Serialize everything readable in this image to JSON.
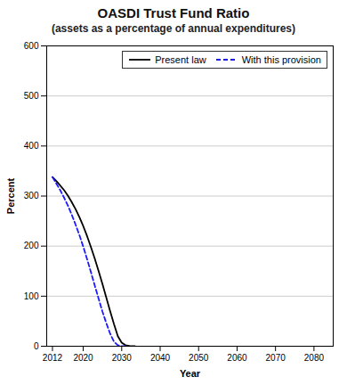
{
  "chart_data": {
    "type": "line",
    "title": "OASDI Trust Fund Ratio",
    "subtitle": "(assets as a percentage of annual expenditures)",
    "xlabel": "Year",
    "ylabel": "Percent",
    "xlim": [
      2010.5,
      2085
    ],
    "ylim": [
      0,
      600
    ],
    "xticks": [
      2012,
      2020,
      2030,
      2040,
      2050,
      2060,
      2070,
      2080
    ],
    "yticks": [
      0,
      100,
      200,
      300,
      400,
      500,
      600
    ],
    "grid": "y",
    "legend": "upper right",
    "series": [
      {
        "name": "Present law",
        "color": "#000000",
        "line_style": "solid",
        "x": [
          2012,
          2013,
          2014,
          2015,
          2016,
          2017,
          2018,
          2019,
          2020,
          2021,
          2022,
          2023,
          2024,
          2025,
          2026,
          2027,
          2028,
          2029,
          2030,
          2031,
          2032,
          2033,
          2033.5
        ],
        "values": [
          338,
          330,
          321,
          312,
          301,
          288,
          274,
          258,
          240,
          220,
          198,
          175,
          150,
          124,
          97,
          70,
          44,
          20,
          7,
          2,
          0.5,
          0,
          0
        ]
      },
      {
        "name": "With this provision",
        "color": "#1a1aff",
        "line_style": "dashed",
        "x": [
          2012,
          2013,
          2014,
          2015,
          2016,
          2017,
          2018,
          2019,
          2020,
          2021,
          2022,
          2023,
          2024,
          2025,
          2026,
          2027,
          2028,
          2029,
          2030,
          2030.5,
          2031
        ],
        "values": [
          338,
          325,
          312,
          297,
          281,
          263,
          243,
          222,
          199,
          174,
          148,
          121,
          95,
          69,
          46,
          25,
          9,
          2,
          0.2,
          0,
          0
        ]
      }
    ]
  }
}
